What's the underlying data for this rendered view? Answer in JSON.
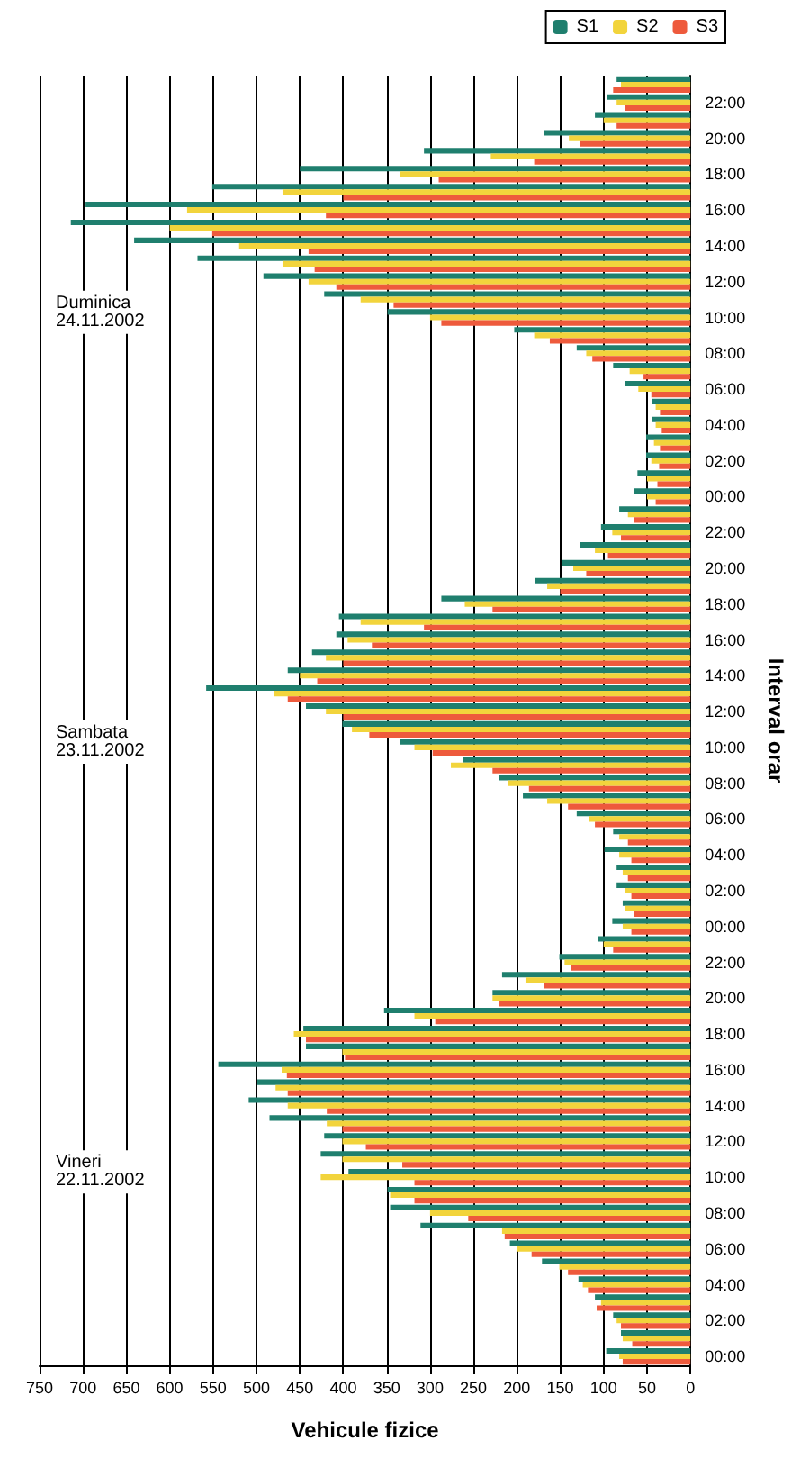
{
  "chart_data": {
    "type": "bar",
    "orientation": "horizontal",
    "xlabel": "Vehicule fizice",
    "ylabel": "Interval orar",
    "categories": [
      null,
      "22:00",
      null,
      "20:00",
      null,
      "18:00",
      null,
      "16:00",
      null,
      "14:00",
      null,
      "12:00",
      null,
      "10:00",
      null,
      "08:00",
      null,
      "06:00",
      null,
      "04:00",
      null,
      "02:00",
      null,
      "00:00",
      null,
      "22:00",
      null,
      "20:00",
      null,
      "18:00",
      null,
      "16:00",
      null,
      "14:00",
      null,
      "12:00",
      null,
      "10:00",
      null,
      "08:00",
      null,
      "06:00",
      null,
      "04:00",
      null,
      "02:00",
      null,
      "00:00",
      null,
      "22:00",
      null,
      "20:00",
      null,
      "18:00",
      null,
      "16:00",
      null,
      "14:00",
      null,
      "12:00",
      null,
      "10:00",
      null,
      "08:00",
      null,
      "06:00",
      null,
      "04:00",
      null,
      "02:00",
      null,
      "00:00"
    ],
    "series": [
      {
        "name": "S1",
        "color": "#1f7f6e",
        "values": [
          85,
          96,
          110,
          169,
          307,
          450,
          551,
          697,
          714,
          641,
          568,
          492,
          422,
          349,
          203,
          131,
          89,
          75,
          44,
          44,
          51,
          51,
          61,
          65,
          82,
          103,
          127,
          148,
          179,
          287,
          405,
          408,
          436,
          464,
          558,
          443,
          401,
          335,
          262,
          221,
          193,
          131,
          89,
          99,
          85,
          85,
          78,
          90,
          106,
          151,
          217,
          228,
          353,
          446,
          443,
          544,
          499,
          509,
          485,
          422,
          426,
          394,
          349,
          346,
          311,
          208,
          171,
          129,
          110,
          89,
          80,
          97
        ]
      },
      {
        "name": "S2",
        "color": "#f2d43c",
        "values": [
          80,
          85,
          100,
          140,
          230,
          335,
          470,
          580,
          600,
          520,
          470,
          440,
          380,
          300,
          180,
          120,
          70,
          60,
          40,
          40,
          42,
          45,
          50,
          50,
          72,
          90,
          110,
          135,
          165,
          260,
          380,
          395,
          420,
          450,
          480,
          420,
          390,
          318,
          276,
          210,
          165,
          117,
          82,
          82,
          78,
          75,
          75,
          78,
          100,
          145,
          190,
          228,
          318,
          457,
          401,
          471,
          478,
          464,
          419,
          401,
          401,
          426,
          346,
          300,
          217,
          200,
          151,
          124,
          103,
          85,
          78,
          82
        ]
      },
      {
        "name": "S3",
        "color": "#ee5a3c",
        "values": [
          89,
          75,
          85,
          127,
          180,
          290,
          400,
          420,
          551,
          440,
          433,
          408,
          342,
          287,
          162,
          113,
          54,
          45,
          35,
          33,
          35,
          36,
          38,
          40,
          65,
          80,
          95,
          120,
          150,
          228,
          307,
          367,
          400,
          430,
          464,
          400,
          370,
          297,
          228,
          186,
          141,
          110,
          72,
          68,
          72,
          68,
          65,
          68,
          89,
          138,
          169,
          220,
          294,
          443,
          398,
          465,
          464,
          419,
          401,
          374,
          332,
          318,
          318,
          256,
          214,
          183,
          141,
          118,
          108,
          80,
          67,
          78
        ]
      }
    ],
    "xlim": [
      750,
      0
    ],
    "xticks": [
      0,
      50,
      100,
      150,
      200,
      250,
      300,
      350,
      400,
      450,
      500,
      550,
      600,
      650,
      700,
      750
    ],
    "grid": "x",
    "legend": "top right",
    "annotations": [
      "Duminica\n24.11.2002",
      "Sambata\n23.11.2002",
      "Vineri\n22.11.2002"
    ]
  }
}
